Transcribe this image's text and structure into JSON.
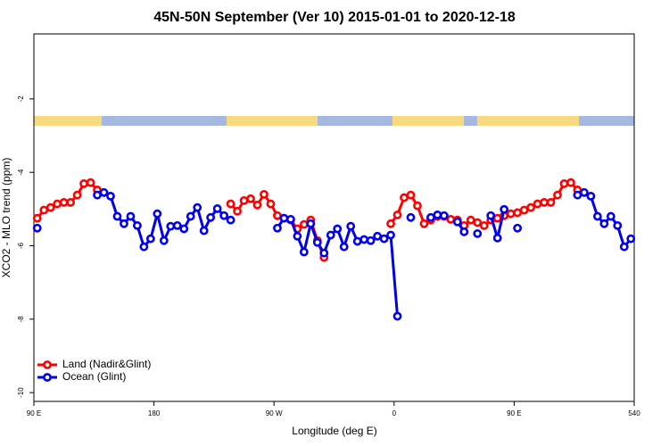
{
  "chart_data": {
    "type": "line",
    "title": "45N-50N September (Ver 10)   2015-01-01 to 2020-12-18",
    "x_label": "Longitude (deg E)",
    "y_label": "XCO2 - MLO trend (ppm)",
    "x": [
      92.5,
      97.5,
      102.5,
      107.5,
      112.5,
      117.5,
      122.5,
      127.5,
      132.5,
      137.5,
      142.5,
      147.5,
      152.5,
      157.5,
      162.5,
      167.5,
      172.5,
      177.5,
      182.5,
      187.5,
      192.5,
      197.5,
      202.5,
      207.5,
      212.5,
      217.5,
      222.5,
      227.5,
      232.5,
      237.5,
      242.5,
      247.5,
      252.5,
      257.5,
      262.5,
      267.5,
      272.5,
      277.5,
      282.5,
      287.5,
      292.5,
      297.5,
      302.5,
      307.5,
      312.5,
      317.5,
      322.5,
      327.5,
      332.5,
      337.5,
      342.5,
      347.5,
      352.5,
      357.5,
      362.5,
      367.5,
      372.5,
      377.5,
      382.5,
      387.5,
      392.5,
      397.5,
      402.5,
      407.5,
      412.5,
      417.5,
      422.5,
      427.5,
      432.5,
      437.5,
      442.5,
      447.5,
      452.5,
      457.5,
      462.5,
      467.5,
      472.5,
      477.5,
      482.5,
      487.5,
      492.5,
      497.5,
      502.5,
      507.5,
      512.5,
      517.5,
      522.5,
      527.5,
      532.5,
      537.5
    ],
    "series": [
      {
        "name": "Land (Nadir&Glint)",
        "color": "#ff0000",
        "values": [
          -5.25,
          -5.03,
          -4.96,
          -4.86,
          -4.82,
          -4.82,
          -4.62,
          -4.31,
          -4.28,
          -4.48,
          null,
          null,
          null,
          null,
          null,
          null,
          null,
          null,
          null,
          null,
          null,
          null,
          null,
          null,
          null,
          null,
          null,
          null,
          null,
          -4.86,
          -5.06,
          -4.77,
          -4.72,
          -4.89,
          -4.6,
          -4.86,
          -5.18,
          -5.25,
          -5.3,
          -5.54,
          -5.42,
          -5.3,
          -5.86,
          -6.32,
          null,
          null,
          null,
          null,
          null,
          null,
          null,
          null,
          null,
          -5.4,
          -5.16,
          -4.69,
          -4.62,
          -4.91,
          -5.4,
          -5.3,
          -5.2,
          -5.2,
          -5.28,
          -5.3,
          -5.45,
          -5.3,
          -5.37,
          -5.45,
          -5.3,
          -5.25,
          -5.18,
          -5.13,
          -5.1,
          -5.03,
          -4.96,
          -4.86,
          -4.82,
          -4.82,
          -4.62,
          -4.31,
          -4.28,
          -4.48,
          null,
          null,
          null,
          null,
          null,
          null,
          null,
          null
        ]
      },
      {
        "name": "Ocean (Glint)",
        "color": "#0000ee",
        "values": [
          -5.52,
          null,
          null,
          null,
          null,
          null,
          null,
          null,
          null,
          -4.62,
          -4.55,
          -4.65,
          -5.2,
          -5.4,
          -5.2,
          -5.45,
          -6.03,
          -5.81,
          -5.13,
          -5.86,
          -5.47,
          -5.45,
          -5.54,
          -5.2,
          -4.96,
          -5.59,
          -5.23,
          -4.99,
          -5.18,
          -5.3,
          null,
          null,
          null,
          null,
          null,
          null,
          -5.52,
          -5.25,
          -5.28,
          -5.74,
          -6.17,
          -5.4,
          -5.91,
          -6.2,
          -5.71,
          -5.54,
          -6.03,
          -5.47,
          -5.88,
          -5.83,
          -5.86,
          -5.74,
          -5.81,
          -5.71,
          -7.92,
          null,
          -5.23,
          null,
          null,
          -5.23,
          -5.16,
          -5.18,
          null,
          -5.35,
          -5.62,
          null,
          -5.67,
          null,
          -5.18,
          -5.79,
          -5.01,
          null,
          -5.52,
          null,
          null,
          null,
          null,
          null,
          null,
          null,
          null,
          -4.62,
          -4.55,
          -4.65,
          -5.2,
          -5.4,
          -5.2,
          -5.45,
          -6.03,
          -5.81
        ]
      }
    ],
    "xlim": [
      90,
      540
    ],
    "xticks": [
      {
        "value": 90,
        "label": "90 E"
      },
      180,
      {
        "value": 270,
        "label": "90 W"
      },
      {
        "value": 360,
        "label": "0"
      },
      {
        "value": 450,
        "label": "90 E"
      },
      540
    ],
    "ylim": [
      -10.24,
      -0.23
    ],
    "yticks": [
      -2,
      -4,
      -6,
      -8,
      -10
    ],
    "legend": "lower left"
  }
}
